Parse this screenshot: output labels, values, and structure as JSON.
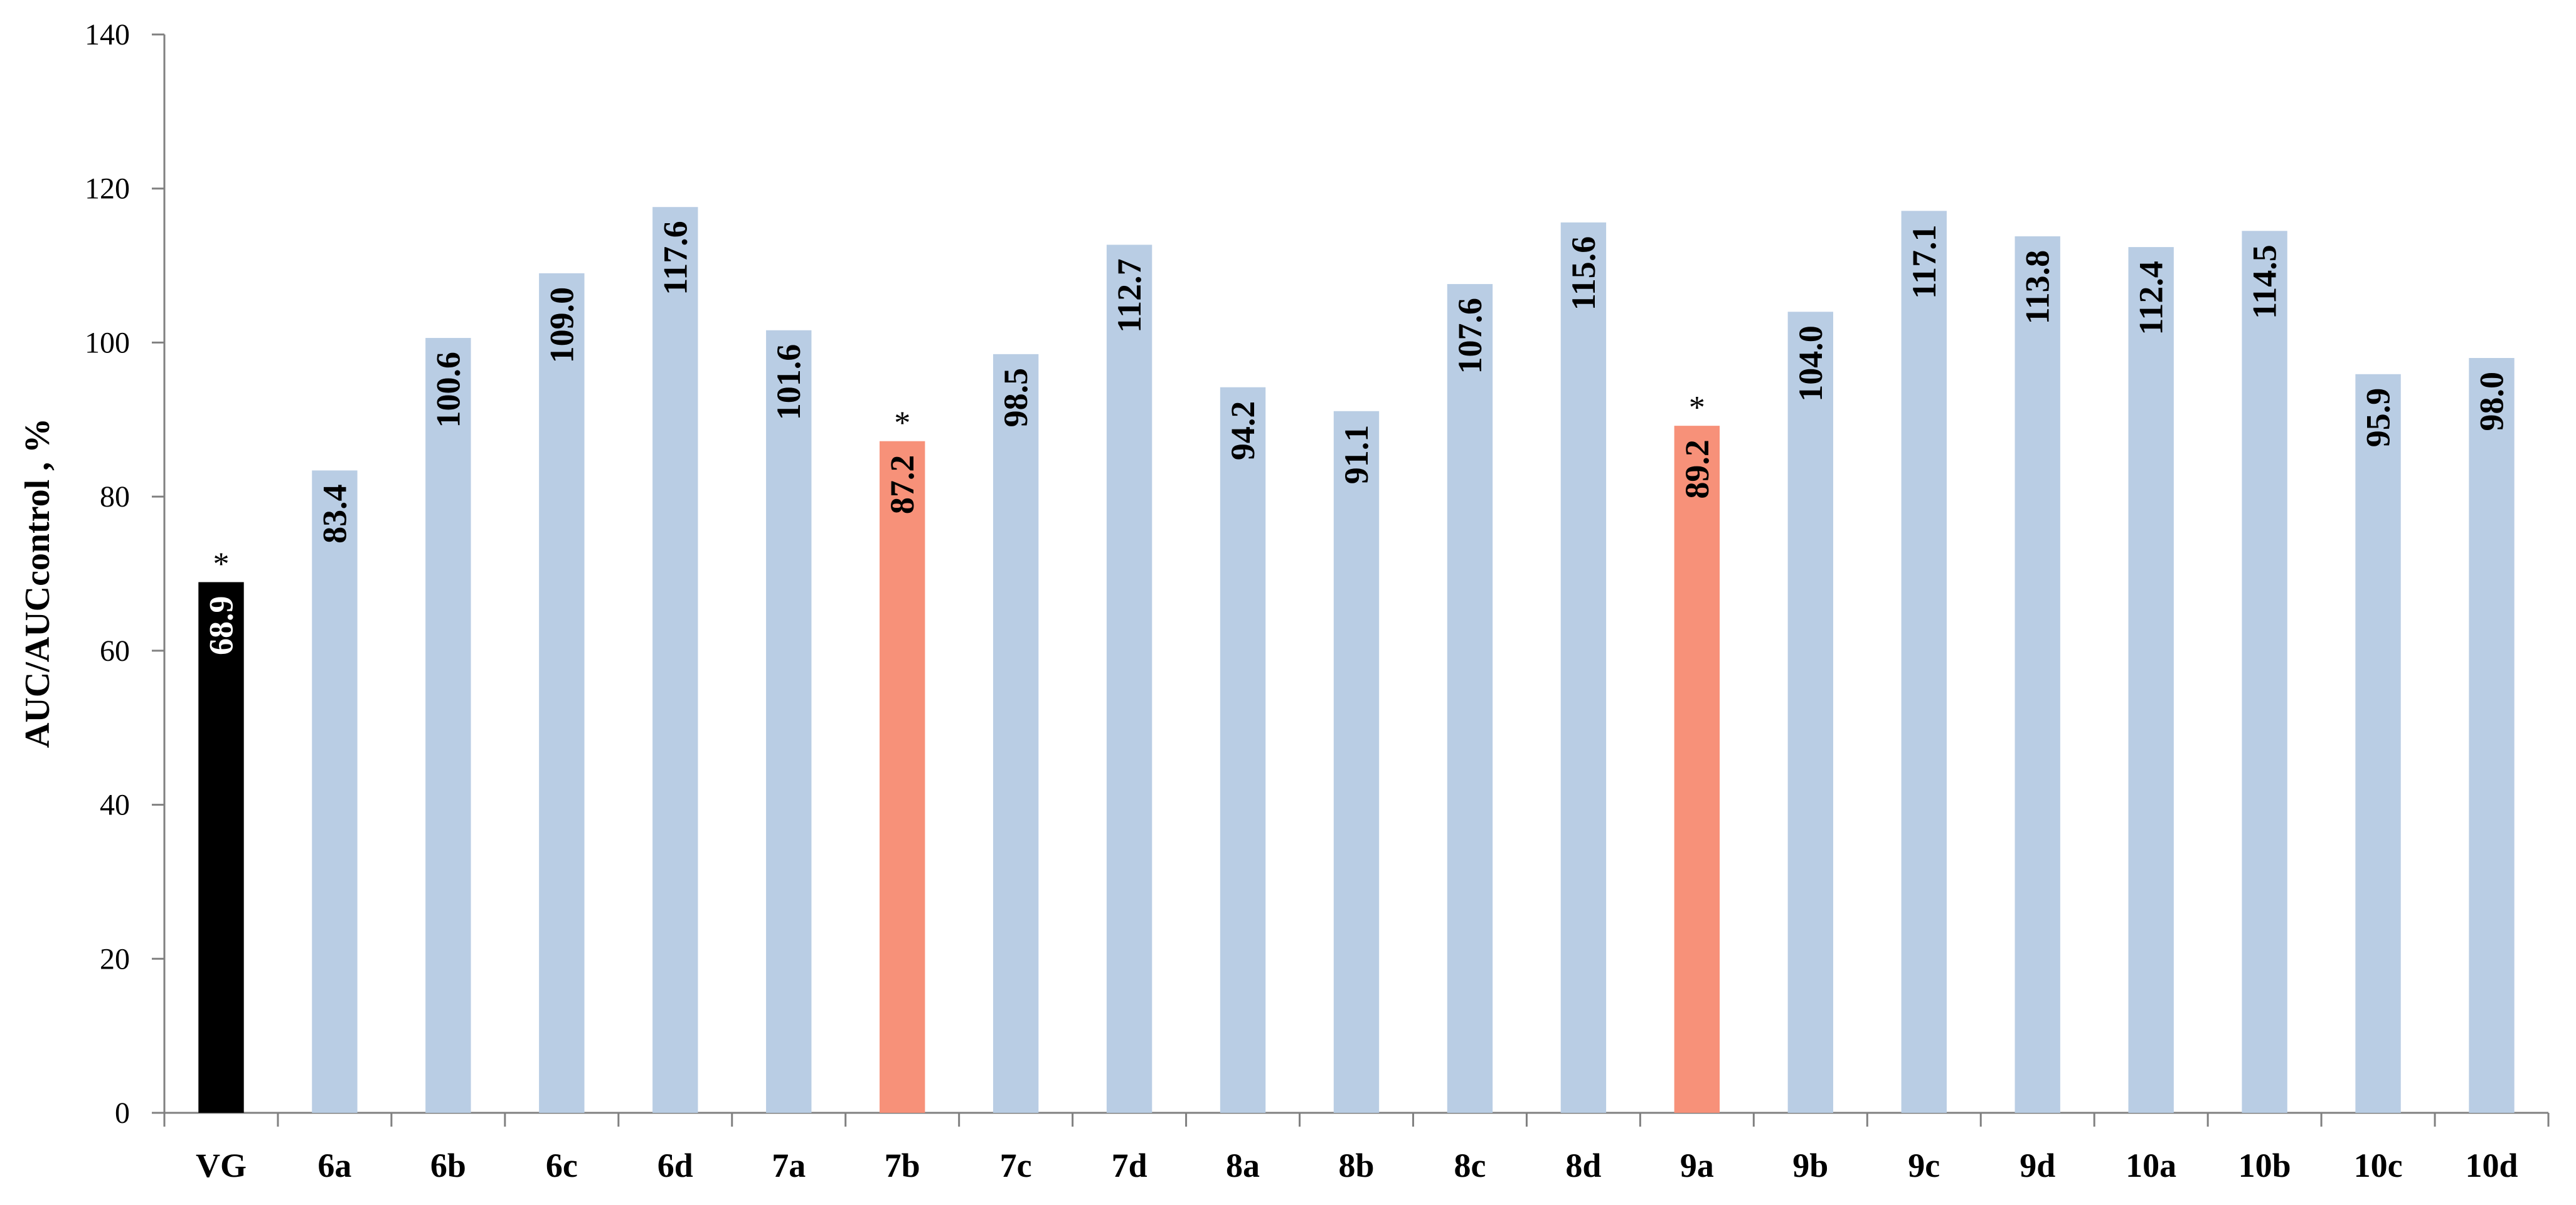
{
  "chart_data": {
    "type": "bar",
    "ylabel": "AUC/AUCcontrol , %",
    "ylim": [
      0,
      140
    ],
    "yticks": [
      0,
      20,
      40,
      60,
      80,
      100,
      120,
      140
    ],
    "grid": false,
    "categories": [
      "VG",
      "6a",
      "6b",
      "6c",
      "6d",
      "7a",
      "7b",
      "7c",
      "7d",
      "8a",
      "8b",
      "8c",
      "8d",
      "9a",
      "9b",
      "9c",
      "9d",
      "10a",
      "10b",
      "10c",
      "10d"
    ],
    "values": [
      68.9,
      83.4,
      100.6,
      109.0,
      117.6,
      101.6,
      87.2,
      98.5,
      112.7,
      94.2,
      91.1,
      107.6,
      115.6,
      89.2,
      104.0,
      117.1,
      113.8,
      112.4,
      114.5,
      95.9,
      98.0
    ],
    "value_labels": [
      "68.9",
      "83.4",
      "100.6",
      "109.0",
      "117.6",
      "101.6",
      "87.2",
      "98.5",
      "112.7",
      "94.2",
      "91.1",
      "107.6",
      "115.6",
      "89.2",
      "104.0",
      "117.1",
      "113.8",
      "112.4",
      "114.5",
      "95.9",
      "98.0"
    ],
    "significance_marker": "*",
    "significant": [
      "VG",
      "7b",
      "9a"
    ],
    "colors": {
      "default": "#b9cde4",
      "reference": "#000000",
      "highlight": "#f79179",
      "reference_label": "#ffffff",
      "label": "#000000",
      "axis": "#808080"
    },
    "bar_roles": {
      "VG": "reference",
      "7b": "highlight",
      "9a": "highlight"
    }
  }
}
